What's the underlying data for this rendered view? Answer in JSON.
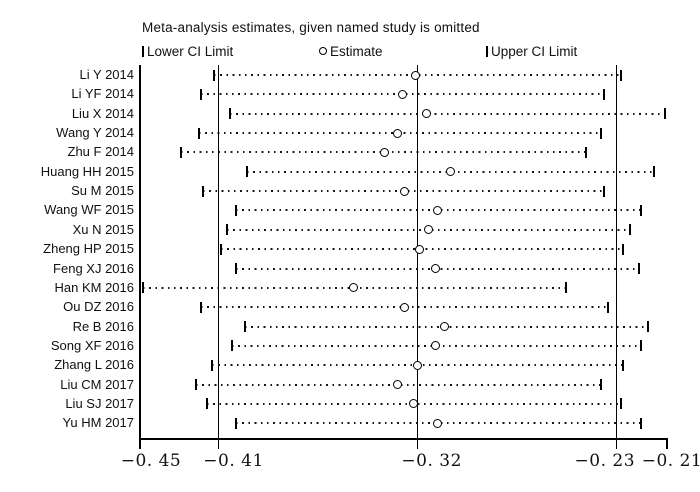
{
  "title": "Meta-analysis estimates, given named study is omitted",
  "legend": [
    {
      "marker": "ci-bar",
      "label": "Lower CI Limit"
    },
    {
      "marker": "circle",
      "label": "Estimate"
    },
    {
      "marker": "ci-bar",
      "label": "Upper CI Limit"
    }
  ],
  "colors": {
    "foreground": "#000000",
    "background": "#ffffff"
  },
  "chart_data": {
    "type": "scatter",
    "variant": "meta-analysis leave-one-out influence (sensitivity) plot",
    "title": "Meta-analysis estimates, given named study is omitted",
    "xlabel": "",
    "ylabel": "",
    "grid": false,
    "legend_position": "top",
    "xlim": [
      -0.4455,
      -0.2073
    ],
    "x_ticks": [
      -0.45,
      -0.41,
      -0.32,
      -0.23,
      -0.21
    ],
    "x_tick_labels": [
      "−0. 45",
      "−0. 41",
      "−0. 32",
      "−0. 23",
      "−0. 21"
    ],
    "reference_lines": [
      {
        "name": "overall-lower-ci",
        "value": -0.41
      },
      {
        "name": "overall-estimate",
        "value": -0.32
      },
      {
        "name": "overall-upper-ci",
        "value": -0.23
      }
    ],
    "studies": [
      {
        "label": "Li Y 2014",
        "lower": -0.412,
        "estimate": -0.321,
        "upper": -0.228
      },
      {
        "label": "Li YF 2014",
        "lower": -0.418,
        "estimate": -0.327,
        "upper": -0.236
      },
      {
        "label": "Liu X 2014",
        "lower": -0.405,
        "estimate": -0.316,
        "upper": -0.208
      },
      {
        "label": "Wang Y 2014",
        "lower": -0.419,
        "estimate": -0.329,
        "upper": -0.237
      },
      {
        "label": "Zhu F 2014",
        "lower": -0.427,
        "estimate": -0.335,
        "upper": -0.244
      },
      {
        "label": "Huang HH 2015",
        "lower": -0.397,
        "estimate": -0.305,
        "upper": -0.213
      },
      {
        "label": "Su M 2015",
        "lower": -0.417,
        "estimate": -0.326,
        "upper": -0.236
      },
      {
        "label": "Wang WF 2015",
        "lower": -0.402,
        "estimate": -0.311,
        "upper": -0.219
      },
      {
        "label": "Xu N 2015",
        "lower": -0.406,
        "estimate": -0.315,
        "upper": -0.224
      },
      {
        "label": "Zheng HP 2015",
        "lower": -0.409,
        "estimate": -0.319,
        "upper": -0.227
      },
      {
        "label": "Feng XJ 2016",
        "lower": -0.402,
        "estimate": -0.312,
        "upper": -0.22
      },
      {
        "label": "Han KM 2016",
        "lower": -0.444,
        "estimate": -0.349,
        "upper": -0.253
      },
      {
        "label": "Ou DZ 2016",
        "lower": -0.418,
        "estimate": -0.326,
        "upper": -0.234
      },
      {
        "label": "Re B 2016",
        "lower": -0.398,
        "estimate": -0.308,
        "upper": -0.216
      },
      {
        "label": "Song XF 2016",
        "lower": -0.404,
        "estimate": -0.312,
        "upper": -0.219
      },
      {
        "label": "Zhang L 2016",
        "lower": -0.413,
        "estimate": -0.32,
        "upper": -0.227
      },
      {
        "label": "Liu CM 2017",
        "lower": -0.42,
        "estimate": -0.329,
        "upper": -0.237
      },
      {
        "label": "Liu SJ 2017",
        "lower": -0.415,
        "estimate": -0.322,
        "upper": -0.228
      },
      {
        "label": "Yu HM 2017",
        "lower": -0.402,
        "estimate": -0.311,
        "upper": -0.219
      }
    ]
  }
}
